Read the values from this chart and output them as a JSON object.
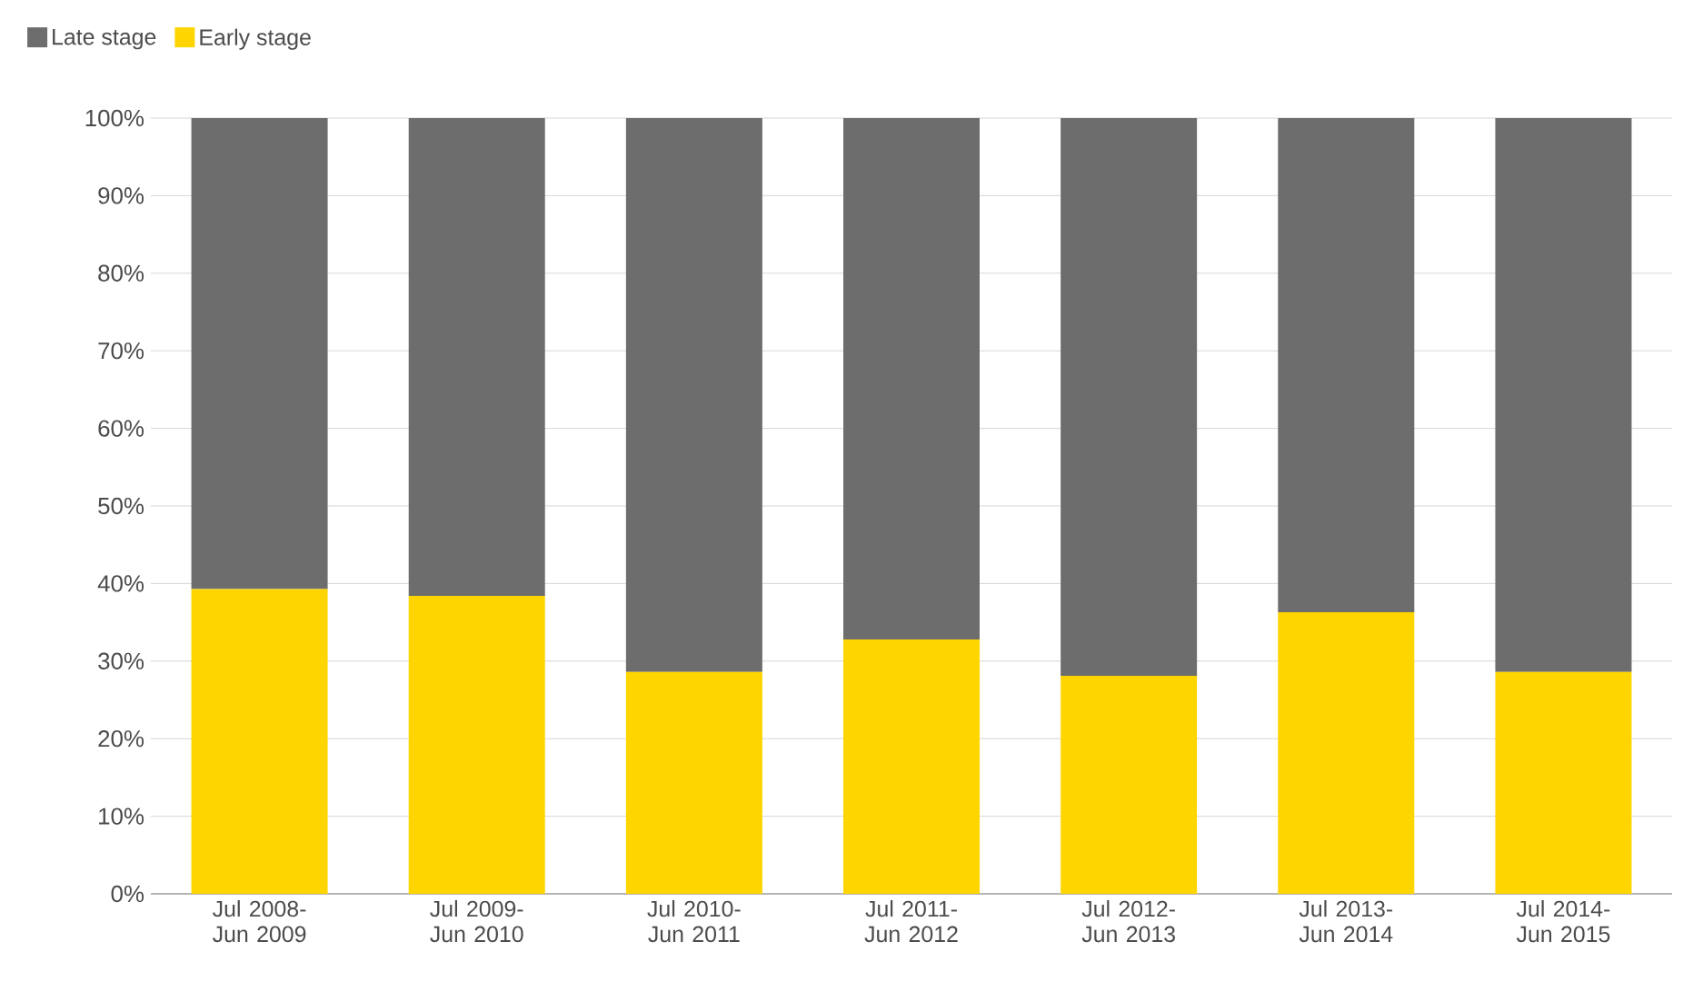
{
  "chart_data": {
    "type": "bar",
    "stacked": true,
    "categories": [
      "Jul 2008-Jun 2009",
      "Jul 2009-Jun 2010",
      "Jul 2010-Jun 2011",
      "Jul 2011-Jun 2012",
      "Jul 2012-Jun 2013",
      "Jul 2013-Jun 2014",
      "Jul 2014-Jun 2015"
    ],
    "series": [
      {
        "name": "Early stage",
        "color": "#ffd500",
        "values": [
          39.3,
          38.4,
          28.6,
          32.8,
          28.1,
          36.3,
          28.6
        ]
      },
      {
        "name": "Late stage",
        "color": "#6d6d6d",
        "values": [
          60.7,
          61.6,
          71.4,
          67.2,
          71.9,
          63.7,
          71.4
        ]
      }
    ],
    "ylim": [
      0,
      100
    ],
    "yticks": [
      {
        "value": 0,
        "label": "0%"
      },
      {
        "value": 10,
        "label": "10%"
      },
      {
        "value": 20,
        "label": "20%"
      },
      {
        "value": 30,
        "label": "30%"
      },
      {
        "value": 40,
        "label": "40%"
      },
      {
        "value": 50,
        "label": "50%"
      },
      {
        "value": 60,
        "label": "60%"
      },
      {
        "value": 70,
        "label": "70%"
      },
      {
        "value": 80,
        "label": "80%"
      },
      {
        "value": 90,
        "label": "90%"
      },
      {
        "value": 100,
        "label": "100%"
      }
    ],
    "grid": "y",
    "legend": "top left"
  }
}
